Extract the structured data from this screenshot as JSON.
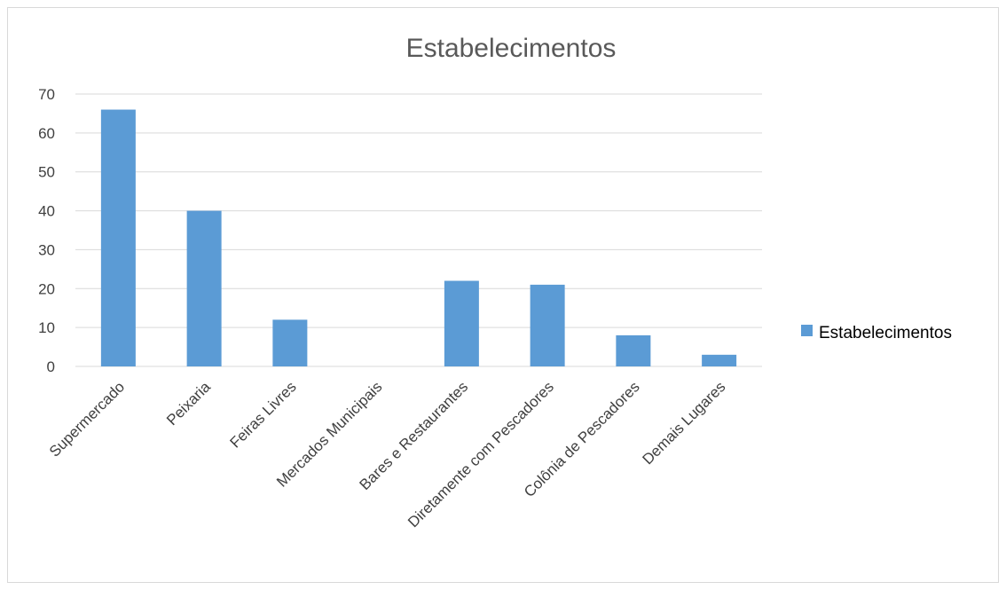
{
  "chart_data": {
    "type": "bar",
    "title": "Estabelecimentos",
    "categories": [
      "Supermercado",
      "Peixaria",
      "Feiras Livres",
      "Mercados Municipais",
      "Bares e Restaurantes",
      "Diretamente com Pescadores",
      "Colônia de Pescadores",
      "Demais Lugares"
    ],
    "series": [
      {
        "name": "Estabelecimentos",
        "values": [
          66,
          40,
          12,
          0,
          22,
          21,
          8,
          3
        ],
        "color": "#5b9bd5"
      }
    ],
    "ylim": [
      0,
      70
    ],
    "yticks": [
      0,
      10,
      20,
      30,
      40,
      50,
      60,
      70
    ],
    "grid": true,
    "legend_position": "right"
  }
}
